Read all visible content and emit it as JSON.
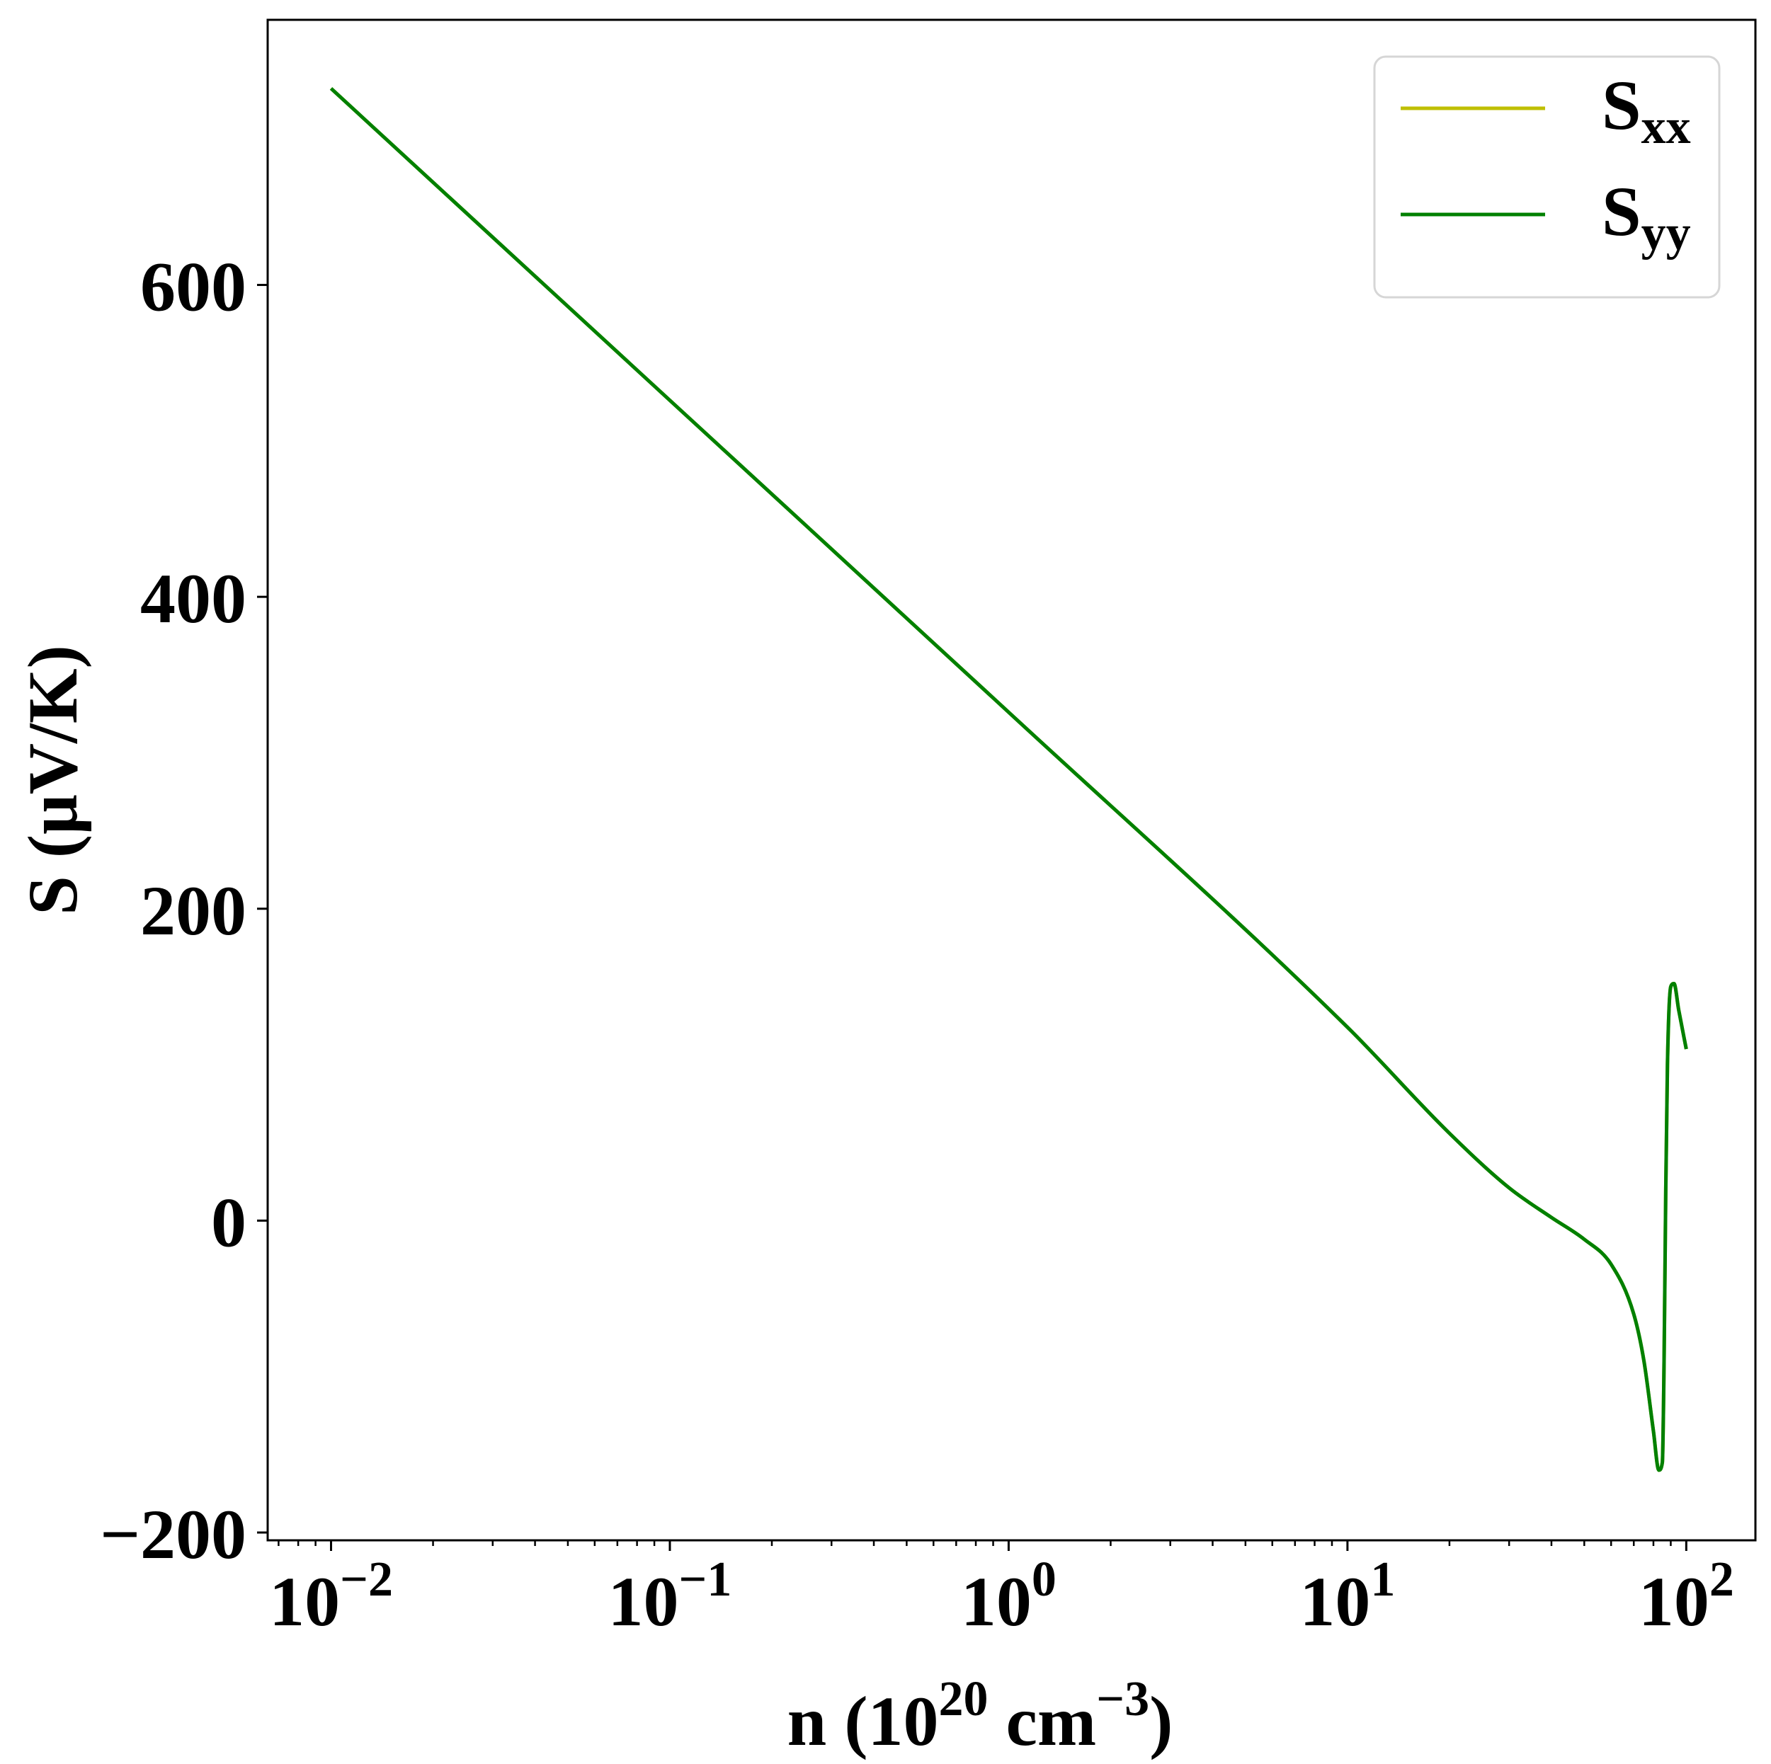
{
  "chart_data": {
    "type": "line",
    "title": "",
    "xlabel": {
      "prefix": "n (10",
      "sup1": "20",
      "mid": " cm",
      "sup2": "−3",
      "suffix": ")"
    },
    "ylabel": "S (μV/K)",
    "xscale": "log",
    "xlim": [
      0.0065,
      160
    ],
    "ylim": [
      -205,
      770
    ],
    "xticks": [
      {
        "value": 0.01,
        "base": "10",
        "exp": "−2"
      },
      {
        "value": 0.1,
        "base": "10",
        "exp": "−1"
      },
      {
        "value": 1,
        "base": "10",
        "exp": "0"
      },
      {
        "value": 10,
        "base": "10",
        "exp": "1"
      },
      {
        "value": 100,
        "base": "10",
        "exp": "2"
      }
    ],
    "yticks": [
      {
        "value": -200,
        "label": "−200"
      },
      {
        "value": 0,
        "label": "0"
      },
      {
        "value": 200,
        "label": "200"
      },
      {
        "value": 400,
        "label": "400"
      },
      {
        "value": 600,
        "label": "600"
      }
    ],
    "grid": false,
    "legend": "top-right",
    "series": [
      {
        "name": "S",
        "sub": "xx",
        "color": "#bfbf00",
        "x": [
          0.01,
          0.1,
          1,
          10,
          20,
          30,
          40,
          50,
          60,
          70,
          75,
          80,
          83,
          85,
          86,
          87,
          88,
          90,
          92,
          95,
          100
        ],
        "y": [
          726,
          526,
          326,
          124,
          56,
          21,
          2,
          -12,
          -28,
          -60,
          -90,
          -135,
          -160,
          -155,
          -90,
          20,
          100,
          150,
          152,
          135,
          110
        ]
      },
      {
        "name": "S",
        "sub": "yy",
        "color": "#008000",
        "x": [
          0.01,
          0.1,
          1,
          10,
          20,
          30,
          40,
          50,
          60,
          70,
          75,
          80,
          83,
          85,
          86,
          87,
          88,
          90,
          92,
          95,
          100
        ],
        "y": [
          726,
          526,
          326,
          124,
          56,
          21,
          2,
          -12,
          -28,
          -60,
          -90,
          -135,
          -160,
          -155,
          -90,
          20,
          100,
          150,
          152,
          135,
          110
        ]
      }
    ]
  }
}
